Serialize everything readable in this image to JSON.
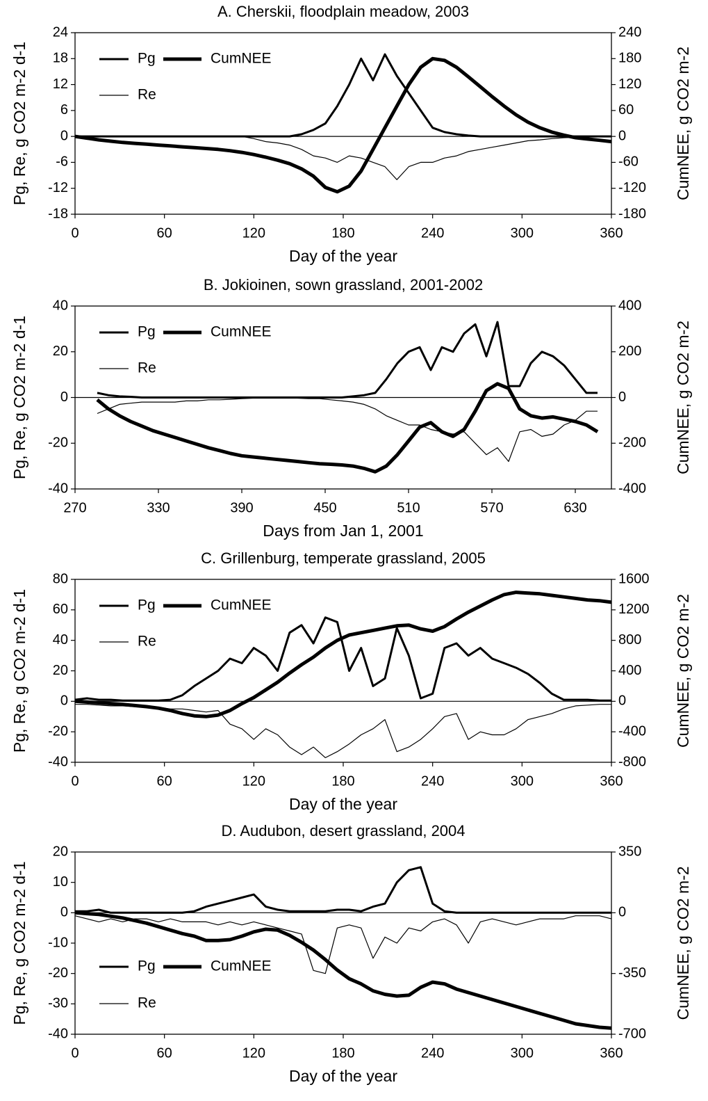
{
  "chart_data": [
    {
      "type": "line",
      "title": "A. Cherskii, floodplain meadow, 2003",
      "xlabel": "Day of the year",
      "ylabel": "Pg, Re, g CO2 m-2 d-1",
      "y2label": "CumNEE, g CO2 m-2",
      "x": [
        0,
        8,
        16,
        24,
        32,
        40,
        48,
        56,
        64,
        72,
        80,
        88,
        96,
        104,
        112,
        120,
        128,
        136,
        144,
        152,
        160,
        168,
        176,
        184,
        192,
        200,
        208,
        216,
        224,
        232,
        240,
        248,
        256,
        264,
        272,
        280,
        288,
        296,
        304,
        312,
        320,
        328,
        336,
        344,
        352,
        360
      ],
      "xlim": [
        0,
        360
      ],
      "xticks": [
        0,
        60,
        120,
        180,
        240,
        300,
        360
      ],
      "ylim": [
        -18,
        24
      ],
      "yticks": [
        -18,
        -12,
        -6,
        0,
        6,
        12,
        18,
        24
      ],
      "y2lim": [
        -180,
        240
      ],
      "y2ticks": [
        -180,
        -120,
        -60,
        0,
        60,
        120,
        180,
        240
      ],
      "legend": "upper left",
      "series": [
        {
          "name": "Pg",
          "color": "#000000",
          "line_width": 3,
          "values": [
            0,
            0,
            0,
            0,
            0,
            0,
            0,
            0,
            0,
            0,
            0,
            0,
            0,
            0,
            0,
            0,
            0,
            0,
            0,
            0.5,
            1.5,
            3,
            7,
            12,
            18,
            13,
            19,
            14,
            10,
            6,
            2,
            1,
            0.5,
            0.2,
            0,
            0,
            0,
            0,
            0,
            0,
            0,
            0,
            0,
            0,
            0,
            0
          ]
        },
        {
          "name": "CumNEE",
          "color": "#000000",
          "line_width": 5,
          "axis": "y2",
          "values": [
            0,
            -4,
            -8,
            -11,
            -14,
            -16,
            -18,
            -20,
            -22,
            -24,
            -26,
            -28,
            -30,
            -33,
            -37,
            -42,
            -48,
            -55,
            -63,
            -75,
            -92,
            -118,
            -128,
            -115,
            -80,
            -30,
            20,
            70,
            120,
            160,
            180,
            176,
            160,
            138,
            115,
            92,
            70,
            50,
            33,
            20,
            10,
            3,
            -3,
            -6,
            -9,
            -12
          ]
        },
        {
          "name": "Re",
          "color": "#000000",
          "line_width": 1.2,
          "values": [
            0,
            0,
            0,
            0,
            0,
            0,
            0,
            0,
            0,
            0,
            0,
            0,
            0,
            0,
            0,
            -0.5,
            -1.2,
            -1.5,
            -2,
            -3,
            -4.5,
            -5,
            -6,
            -4.5,
            -5,
            -6,
            -7,
            -10,
            -7,
            -6,
            -6,
            -5,
            -4.5,
            -3.5,
            -3,
            -2.5,
            -2,
            -1.5,
            -1,
            -0.8,
            -0.5,
            -0.3,
            -0.2,
            0,
            0,
            0
          ]
        }
      ]
    },
    {
      "type": "line",
      "title": "B. Jokioinen, sown grassland, 2001-2002",
      "xlabel": "Days from Jan 1, 2001",
      "ylabel": "Pg, Re, g CO2 m-2 d-1",
      "y2label": "CumNEE, g CO2 m-2",
      "x": [
        286,
        294,
        302,
        310,
        318,
        326,
        334,
        342,
        350,
        358,
        366,
        374,
        382,
        390,
        398,
        406,
        414,
        422,
        430,
        438,
        446,
        454,
        462,
        470,
        478,
        486,
        494,
        502,
        510,
        518,
        526,
        534,
        542,
        550,
        558,
        566,
        574,
        582,
        590,
        598,
        606,
        614,
        622,
        630,
        638,
        646
      ],
      "xlim": [
        270,
        656
      ],
      "xticks": [
        270,
        330,
        390,
        450,
        510,
        570,
        630
      ],
      "ylim": [
        -40,
        40
      ],
      "yticks": [
        -40,
        -20,
        0,
        20,
        40
      ],
      "y2lim": [
        -400,
        400
      ],
      "y2ticks": [
        -400,
        -200,
        0,
        200,
        400
      ],
      "legend": "upper left",
      "series": [
        {
          "name": "Pg",
          "color": "#000000",
          "line_width": 3,
          "values": [
            2,
            1,
            0.5,
            0.3,
            0,
            0,
            0,
            0,
            0,
            0,
            0,
            0,
            0,
            0,
            0,
            0,
            0,
            0,
            0,
            0,
            0,
            0,
            0,
            0.5,
            1,
            2,
            8,
            15,
            20,
            22,
            12,
            22,
            20,
            28,
            32,
            18,
            33,
            5,
            5,
            15,
            20,
            18,
            14,
            8,
            2,
            2
          ]
        },
        {
          "name": "CumNEE",
          "color": "#000000",
          "line_width": 5,
          "axis": "y2",
          "values": [
            -10,
            -50,
            -80,
            -105,
            -125,
            -145,
            -160,
            -175,
            -190,
            -205,
            -220,
            -232,
            -245,
            -255,
            -260,
            -265,
            -270,
            -275,
            -280,
            -285,
            -290,
            -292,
            -295,
            -300,
            -310,
            -325,
            -300,
            -250,
            -190,
            -130,
            -110,
            -150,
            -170,
            -140,
            -60,
            30,
            60,
            40,
            -50,
            -80,
            -90,
            -85,
            -95,
            -105,
            -120,
            -150
          ]
        },
        {
          "name": "Re",
          "color": "#000000",
          "line_width": 1.2,
          "values": [
            -7,
            -5,
            -3,
            -2.5,
            -2,
            -2,
            -2,
            -2,
            -1.5,
            -1.5,
            -1,
            -1,
            -0.8,
            -0.5,
            -0.3,
            -0.3,
            -0.3,
            -0.3,
            -0.3,
            -0.5,
            -0.5,
            -1,
            -1.5,
            -2,
            -3,
            -5,
            -8,
            -10,
            -12,
            -12,
            -14,
            -15,
            -16,
            -15,
            -20,
            -25,
            -22,
            -28,
            -15,
            -14,
            -17,
            -16,
            -12,
            -10,
            -6,
            -6
          ]
        }
      ]
    },
    {
      "type": "line",
      "title": "C. Grillenburg, temperate grassland, 2005",
      "xlabel": "Day of the year",
      "ylabel": "Pg, Re, g CO2 m-2 d-1",
      "y2label": "CumNEE, g CO2 m-2",
      "x": [
        0,
        8,
        16,
        24,
        32,
        40,
        48,
        56,
        64,
        72,
        80,
        88,
        96,
        104,
        112,
        120,
        128,
        136,
        144,
        152,
        160,
        168,
        176,
        184,
        192,
        200,
        208,
        216,
        224,
        232,
        240,
        248,
        256,
        264,
        272,
        280,
        288,
        296,
        304,
        312,
        320,
        328,
        336,
        344,
        352,
        360
      ],
      "xlim": [
        0,
        360
      ],
      "xticks": [
        0,
        60,
        120,
        180,
        240,
        300,
        360
      ],
      "ylim": [
        -40,
        80
      ],
      "yticks": [
        -40,
        -20,
        0,
        20,
        40,
        60,
        80
      ],
      "y2lim": [
        -800,
        1600
      ],
      "y2ticks": [
        -800,
        -400,
        0,
        400,
        800,
        1200,
        1600
      ],
      "legend": "upper left",
      "series": [
        {
          "name": "Pg",
          "color": "#000000",
          "line_width": 3,
          "values": [
            1,
            2,
            1,
            1,
            0.5,
            0.5,
            0.5,
            0.5,
            1,
            4,
            10,
            15,
            20,
            28,
            25,
            35,
            30,
            20,
            45,
            50,
            38,
            55,
            52,
            20,
            35,
            10,
            15,
            48,
            30,
            2,
            5,
            35,
            38,
            30,
            35,
            28,
            25,
            22,
            18,
            12,
            5,
            1,
            1,
            1,
            0.5,
            0.5
          ]
        },
        {
          "name": "CumNEE",
          "color": "#000000",
          "line_width": 5,
          "axis": "y2",
          "values": [
            0,
            -10,
            -20,
            -30,
            -40,
            -55,
            -70,
            -90,
            -120,
            -160,
            -190,
            -200,
            -180,
            -120,
            -30,
            50,
            150,
            250,
            370,
            480,
            580,
            700,
            800,
            870,
            900,
            930,
            960,
            990,
            1000,
            950,
            920,
            980,
            1080,
            1170,
            1250,
            1330,
            1400,
            1430,
            1420,
            1410,
            1390,
            1370,
            1350,
            1330,
            1320,
            1300
          ]
        },
        {
          "name": "Re",
          "color": "#000000",
          "line_width": 1.2,
          "values": [
            -2,
            -2,
            -2.5,
            -3,
            -3,
            -3.5,
            -4,
            -4,
            -5,
            -5,
            -6,
            -7,
            -6,
            -15,
            -18,
            -25,
            -18,
            -22,
            -30,
            -35,
            -30,
            -37,
            -33,
            -28,
            -22,
            -18,
            -12,
            -33,
            -30,
            -25,
            -18,
            -10,
            -8,
            -25,
            -20,
            -22,
            -22,
            -18,
            -12,
            -10,
            -8,
            -5,
            -3,
            -2.5,
            -2,
            -2
          ]
        }
      ]
    },
    {
      "type": "line",
      "title": "D. Audubon, desert grassland, 2004",
      "xlabel": "Day of the year",
      "ylabel": "Pg, Re, g CO2 m-2 d-1",
      "y2label": "CumNEE, g CO2 m-2",
      "x": [
        0,
        8,
        16,
        24,
        32,
        40,
        48,
        56,
        64,
        72,
        80,
        88,
        96,
        104,
        112,
        120,
        128,
        136,
        144,
        152,
        160,
        168,
        176,
        184,
        192,
        200,
        208,
        216,
        224,
        232,
        240,
        248,
        256,
        264,
        272,
        280,
        288,
        296,
        304,
        312,
        320,
        328,
        336,
        344,
        352,
        360
      ],
      "xlim": [
        0,
        360
      ],
      "xticks": [
        0,
        60,
        120,
        180,
        240,
        300,
        360
      ],
      "ylim": [
        -40,
        20
      ],
      "yticks": [
        -40,
        -30,
        -20,
        -10,
        0,
        10,
        20
      ],
      "y2lim": [
        -700,
        350
      ],
      "y2ticks": [
        -700,
        -350,
        0,
        350
      ],
      "legend": "lower left",
      "series": [
        {
          "name": "Pg",
          "color": "#000000",
          "line_width": 3,
          "values": [
            0.5,
            0.5,
            1,
            0,
            0,
            0,
            0,
            0,
            0,
            0,
            0.5,
            2,
            3,
            4,
            5,
            6,
            2,
            1,
            0.5,
            0.5,
            0.5,
            0.5,
            1,
            1,
            0.5,
            2,
            3,
            10,
            14,
            15,
            3,
            0.5,
            0,
            0,
            0,
            0,
            0,
            0,
            0,
            0,
            0,
            0,
            0,
            0,
            0,
            0
          ]
        },
        {
          "name": "CumNEE",
          "color": "#000000",
          "line_width": 5,
          "axis": "y2",
          "values": [
            0,
            -5,
            -10,
            -20,
            -30,
            -45,
            -60,
            -80,
            -100,
            -120,
            -135,
            -160,
            -160,
            -155,
            -135,
            -110,
            -95,
            -100,
            -130,
            -170,
            -215,
            -270,
            -330,
            -380,
            -410,
            -450,
            -470,
            -480,
            -475,
            -430,
            -400,
            -410,
            -440,
            -460,
            -480,
            -500,
            -520,
            -540,
            -560,
            -580,
            -600,
            -620,
            -640,
            -650,
            -660,
            -665
          ]
        },
        {
          "name": "Re",
          "color": "#000000",
          "line_width": 1.2,
          "values": [
            -1,
            -2,
            -3,
            -2,
            -3,
            -2,
            -2,
            -3,
            -2,
            -3,
            -3,
            -3,
            -4,
            -3,
            -4,
            -3,
            -4,
            -5,
            -6,
            -7,
            -19,
            -20,
            -5,
            -4,
            -5,
            -15,
            -8,
            -10,
            -5,
            -6,
            -3,
            -2,
            -4,
            -10,
            -3,
            -2,
            -3,
            -4,
            -3,
            -2,
            -2,
            -2,
            -1,
            -1,
            -1,
            -2
          ]
        }
      ]
    }
  ]
}
